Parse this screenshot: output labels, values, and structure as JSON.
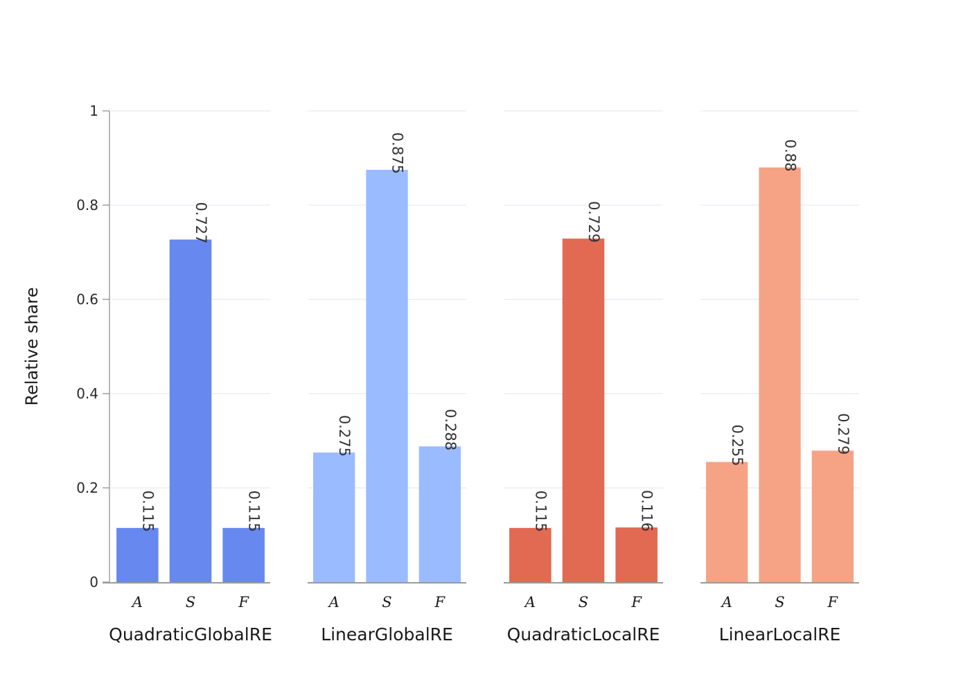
{
  "chart_data": {
    "type": "bar",
    "ylabel": "Relative share",
    "ylim": [
      0,
      1
    ],
    "yticks": [
      0,
      0.2,
      0.4,
      0.6,
      0.8,
      1
    ],
    "ytick_labels": [
      "0",
      "0.2",
      "0.4",
      "0.6",
      "0.8",
      "1"
    ],
    "gridlines": true,
    "categories": [
      "A",
      "S",
      "F"
    ],
    "panels": [
      {
        "name": "QuadraticGlobalRE",
        "color": "#6788ee",
        "values": [
          0.115,
          0.727,
          0.115
        ],
        "labels": [
          "0.115",
          "0.727",
          "0.115"
        ]
      },
      {
        "name": "LinearGlobalRE",
        "color": "#9abbff",
        "values": [
          0.275,
          0.875,
          0.288
        ],
        "labels": [
          "0.275",
          "0.875",
          "0.288"
        ]
      },
      {
        "name": "QuadraticLocalRE",
        "color": "#e26952",
        "values": [
          0.115,
          0.729,
          0.116
        ],
        "labels": [
          "0.115",
          "0.729",
          "0.116"
        ]
      },
      {
        "name": "LinearLocalRE",
        "color": "#f6a385",
        "values": [
          0.255,
          0.88,
          0.279
        ],
        "labels": [
          "0.255",
          "0.88",
          "0.279"
        ]
      }
    ]
  }
}
